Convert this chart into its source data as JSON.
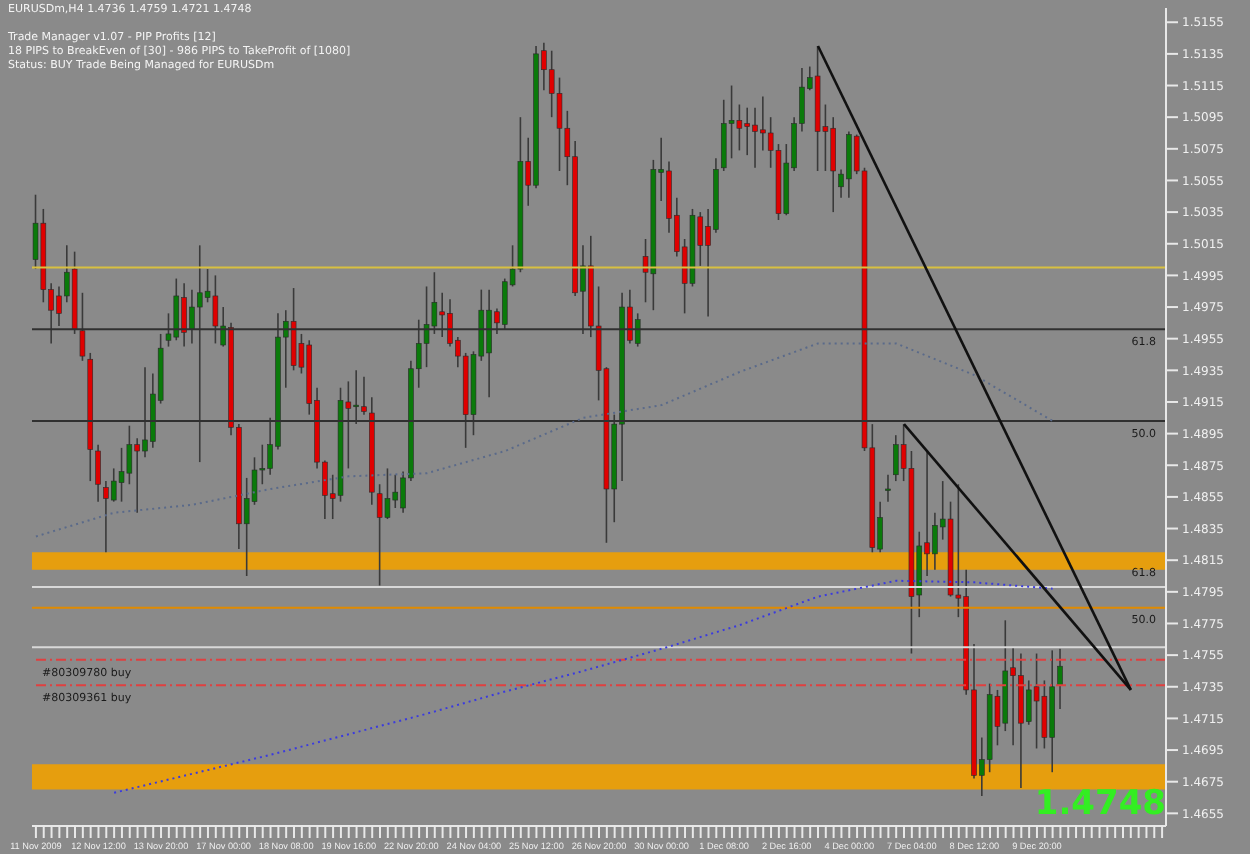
{
  "chart_data": {
    "type": "candlestick",
    "annotations": [
      "EURUSDm,H4  1.4736 1.4759 1.4721 1.4748",
      "Trade Manager v1.07 - PIP Profits [12]",
      "18 PIPS to BreakEven of [30] - 986 PIPS to TakeProfit of [1080]",
      "Status: BUY Trade Being Managed for EURUSDm",
      "1.4748",
      {
        "text": "61.8",
        "y": 1.4961
      },
      {
        "text": "50.0",
        "y": 1.4903
      },
      {
        "text": "61.8",
        "y": 1.4815
      },
      {
        "text": "50.0",
        "y": 1.4785
      }
    ],
    "categories": [
      "11 Nov 2009",
      null,
      null,
      null,
      null,
      null,
      null,
      null,
      "12 Nov 12:00",
      null,
      null,
      null,
      null,
      null,
      null,
      null,
      "13 Nov 20:00",
      null,
      null,
      null,
      null,
      null,
      null,
      null,
      "17 Nov 00:00",
      null,
      null,
      null,
      null,
      null,
      null,
      null,
      "18 Nov 08:00",
      null,
      null,
      null,
      null,
      null,
      null,
      null,
      "19 Nov 16:00",
      null,
      null,
      null,
      null,
      null,
      null,
      null,
      "22 Nov 20:00",
      null,
      null,
      null,
      null,
      null,
      null,
      null,
      "24 Nov 04:00",
      null,
      null,
      null,
      null,
      null,
      null,
      null,
      "25 Nov 12:00",
      null,
      null,
      null,
      null,
      null,
      null,
      null,
      "26 Nov 20:00",
      null,
      null,
      null,
      null,
      null,
      null,
      null,
      "30 Nov 00:00",
      null,
      null,
      null,
      null,
      null,
      null,
      null,
      "1 Dec 08:00",
      null,
      null,
      null,
      null,
      null,
      null,
      null,
      "2 Dec 16:00",
      null,
      null,
      null,
      null,
      null,
      null,
      null,
      "4 Dec 00:00",
      null,
      null,
      null,
      null,
      null,
      null,
      null,
      "7 Dec 04:00",
      null,
      null,
      null,
      null,
      null,
      null,
      null,
      "8 Dec 12:00",
      null,
      null,
      null,
      null,
      null,
      null,
      null,
      "9 Dec 20:00",
      null,
      null,
      null,
      null,
      null,
      null,
      null,
      null,
      null,
      null,
      null,
      null,
      null,
      null,
      null,
      null
    ],
    "ohlc": [
      [
        1.5005,
        1.5046,
        1.4999,
        1.5028
      ],
      [
        1.5028,
        1.5037,
        1.4978,
        1.4986
      ],
      [
        1.4986,
        1.499,
        1.4952,
        1.4973
      ],
      [
        1.4982,
        1.4988,
        1.4963,
        1.4971
      ],
      [
        1.4982,
        1.5014,
        1.4978,
        1.4997
      ],
      [
        1.4999,
        1.501,
        1.4958,
        1.4961
      ],
      [
        1.496,
        1.4984,
        1.4941,
        1.4944
      ],
      [
        1.4942,
        1.4946,
        1.4865,
        1.4885
      ],
      [
        1.4884,
        1.4888,
        1.4852,
        1.4863
      ],
      [
        1.4861,
        1.4865,
        1.482,
        1.4854
      ],
      [
        1.4853,
        1.4873,
        1.4852,
        1.4865
      ],
      [
        1.4864,
        1.4886,
        1.4852,
        1.4871
      ],
      [
        1.487,
        1.49,
        1.4863,
        1.4888
      ],
      [
        1.4888,
        1.4892,
        1.4845,
        1.4884
      ],
      [
        1.4884,
        1.4937,
        1.488,
        1.4891
      ],
      [
        1.489,
        1.4933,
        1.4886,
        1.492
      ],
      [
        1.4916,
        1.4958,
        1.4914,
        1.4949
      ],
      [
        1.4954,
        1.4971,
        1.495,
        1.4958
      ],
      [
        1.4956,
        1.4993,
        1.4954,
        1.4982
      ],
      [
        1.4981,
        1.499,
        1.495,
        1.4959
      ],
      [
        1.4961,
        1.4986,
        1.4952,
        1.4975
      ],
      [
        1.4975,
        1.5014,
        1.4877,
        1.4984
      ],
      [
        1.4981,
        1.4999,
        1.4978,
        1.4985
      ],
      [
        1.4982,
        1.4995,
        1.4952,
        1.4963
      ],
      [
        1.4951,
        1.4975,
        1.495,
        1.4963
      ],
      [
        1.4962,
        1.4965,
        1.4894,
        1.4899
      ],
      [
        1.4899,
        1.4901,
        1.4822,
        1.4838
      ],
      [
        1.4838,
        1.4867,
        1.4805,
        1.4854
      ],
      [
        1.4852,
        1.488,
        1.485,
        1.4872
      ],
      [
        1.4872,
        1.4888,
        1.4863,
        1.4873
      ],
      [
        1.4873,
        1.4905,
        1.4869,
        1.4888
      ],
      [
        1.4887,
        1.4971,
        1.4885,
        1.4956
      ],
      [
        1.4956,
        1.4973,
        1.4924,
        1.4966
      ],
      [
        1.4966,
        1.4987,
        1.4935,
        1.4938
      ],
      [
        1.4952,
        1.4958,
        1.4933,
        1.4937
      ],
      [
        1.4951,
        1.4954,
        1.4907,
        1.4914
      ],
      [
        1.4916,
        1.4924,
        1.4873,
        1.4877
      ],
      [
        1.4877,
        1.4878,
        1.4841,
        1.4856
      ],
      [
        1.4857,
        1.4869,
        1.4841,
        1.4854
      ],
      [
        1.4856,
        1.4924,
        1.4852,
        1.4916
      ],
      [
        1.4915,
        1.4928,
        1.4873,
        1.4911
      ],
      [
        1.4912,
        1.4935,
        1.4901,
        1.4913
      ],
      [
        1.4912,
        1.4931,
        1.4907,
        1.4909
      ],
      [
        1.4908,
        1.4918,
        1.485,
        1.4858
      ],
      [
        1.4857,
        1.4863,
        1.4799,
        1.4842
      ],
      [
        1.4842,
        1.4873,
        1.4841,
        1.4854
      ],
      [
        1.4853,
        1.4869,
        1.4848,
        1.4858
      ],
      [
        1.4848,
        1.4871,
        1.4845,
        1.4867
      ],
      [
        1.4867,
        1.4941,
        1.4865,
        1.4936
      ],
      [
        1.4936,
        1.4967,
        1.4924,
        1.4952
      ],
      [
        1.4952,
        1.4988,
        1.4937,
        1.4964
      ],
      [
        1.4963,
        1.4997,
        1.4958,
        1.4978
      ],
      [
        1.4972,
        1.4984,
        1.4956,
        1.497
      ],
      [
        1.4971,
        1.498,
        1.495,
        1.4952
      ],
      [
        1.4954,
        1.4956,
        1.4937,
        1.4944
      ],
      [
        1.4944,
        1.4946,
        1.4886,
        1.4907
      ],
      [
        1.4907,
        1.4947,
        1.4894,
        1.4945
      ],
      [
        1.4944,
        1.4986,
        1.4941,
        1.4973
      ],
      [
        1.4946,
        1.4986,
        1.4918,
        1.4973
      ],
      [
        1.4972,
        1.4974,
        1.4958,
        1.4965
      ],
      [
        1.4964,
        1.4993,
        1.4961,
        1.4991
      ],
      [
        1.4989,
        1.5014,
        1.4988,
        1.4999
      ],
      [
        1.4999,
        1.5095,
        1.4997,
        1.5067
      ],
      [
        1.5067,
        1.5082,
        1.5039,
        1.5052
      ],
      [
        1.5052,
        1.514,
        1.505,
        1.5135
      ],
      [
        1.5137,
        1.5142,
        1.5112,
        1.5125
      ],
      [
        1.5125,
        1.5137,
        1.5095,
        1.511
      ],
      [
        1.511,
        1.512,
        1.5061,
        1.5088
      ],
      [
        1.5088,
        1.5099,
        1.5052,
        1.507
      ],
      [
        1.507,
        1.508,
        1.4982,
        1.4984
      ],
      [
        1.4985,
        1.5014,
        1.4958,
        1.5001
      ],
      [
        1.5001,
        1.502,
        1.4956,
        1.4963
      ],
      [
        1.4963,
        1.4988,
        1.4916,
        1.4935
      ],
      [
        1.4936,
        1.4937,
        1.4826,
        1.486
      ],
      [
        1.486,
        1.4907,
        1.4839,
        1.4901
      ],
      [
        1.4901,
        1.4984,
        1.4865,
        1.4975
      ],
      [
        1.4975,
        1.4986,
        1.4952,
        1.4954
      ],
      [
        1.4952,
        1.4971,
        1.495,
        1.4967
      ],
      [
        1.5007,
        1.5018,
        1.4978,
        1.4997
      ],
      [
        1.4996,
        1.5068,
        1.4973,
        1.5062
      ],
      [
        1.506,
        1.5082,
        1.5042,
        1.5062
      ],
      [
        1.5061,
        1.5067,
        1.5022,
        1.5031
      ],
      [
        1.5033,
        1.5044,
        1.5007,
        1.501
      ],
      [
        1.5013,
        1.5018,
        1.4971,
        1.499
      ],
      [
        1.499,
        1.5037,
        1.4988,
        1.5033
      ],
      [
        1.5032,
        1.5035,
        1.5001,
        1.5014
      ],
      [
        1.5026,
        1.5037,
        1.4969,
        1.5014
      ],
      [
        1.5024,
        1.5069,
        1.5022,
        1.5062
      ],
      [
        1.5063,
        1.5106,
        1.5061,
        1.5091
      ],
      [
        1.5091,
        1.5115,
        1.5069,
        1.5093
      ],
      [
        1.5093,
        1.5103,
        1.5074,
        1.5088
      ],
      [
        1.5091,
        1.5101,
        1.5071,
        1.5089
      ],
      [
        1.509,
        1.5101,
        1.5063,
        1.5086
      ],
      [
        1.5087,
        1.5108,
        1.5074,
        1.5085
      ],
      [
        1.5085,
        1.5095,
        1.5063,
        1.5074
      ],
      [
        1.5074,
        1.5078,
        1.503,
        1.5034
      ],
      [
        1.5034,
        1.5078,
        1.5033,
        1.5066
      ],
      [
        1.5063,
        1.5095,
        1.5061,
        1.5091
      ],
      [
        1.5091,
        1.5126,
        1.5086,
        1.5114
      ],
      [
        1.5113,
        1.5127,
        1.5112,
        1.512
      ],
      [
        1.5121,
        1.514,
        1.5061,
        1.5086
      ],
      [
        1.5089,
        1.5103,
        1.5061,
        1.5086
      ],
      [
        1.5088,
        1.5095,
        1.5035,
        1.5061
      ],
      [
        1.5051,
        1.5062,
        1.5044,
        1.5059
      ],
      [
        1.5056,
        1.5086,
        1.5044,
        1.5084
      ],
      [
        1.5083,
        1.5084,
        1.5059,
        1.5061
      ],
      [
        1.5061,
        1.5063,
        1.4884,
        1.4886
      ],
      [
        1.4886,
        1.4901,
        1.482,
        1.4823
      ],
      [
        1.4822,
        1.4852,
        1.482,
        1.4842
      ],
      [
        1.486,
        1.4869,
        1.4852,
        1.486
      ],
      [
        1.4869,
        1.4894,
        1.4865,
        1.4888
      ],
      [
        1.4888,
        1.4901,
        1.4865,
        1.4873
      ],
      [
        1.4873,
        1.4884,
        1.4756,
        1.4792
      ],
      [
        1.4793,
        1.4833,
        1.4779,
        1.4824
      ],
      [
        1.4826,
        1.4884,
        1.4805,
        1.4819
      ],
      [
        1.4819,
        1.4845,
        1.4809,
        1.4837
      ],
      [
        1.4836,
        1.4865,
        1.4828,
        1.4841
      ],
      [
        1.4841,
        1.4852,
        1.4792,
        1.4793
      ],
      [
        1.4793,
        1.4863,
        1.4779,
        1.4791
      ],
      [
        1.4792,
        1.4809,
        1.473,
        1.4733
      ],
      [
        1.4733,
        1.4762,
        1.4677,
        1.4679
      ],
      [
        1.4679,
        1.4703,
        1.4666,
        1.4689
      ],
      [
        1.4689,
        1.4737,
        1.4681,
        1.473
      ],
      [
        1.4729,
        1.4733,
        1.4698,
        1.471
      ],
      [
        1.4712,
        1.4777,
        1.4707,
        1.4745
      ],
      [
        1.4747,
        1.476,
        1.4698,
        1.4742
      ],
      [
        1.4742,
        1.4756,
        1.4671,
        1.4712
      ],
      [
        1.4713,
        1.4739,
        1.4711,
        1.4733
      ],
      [
        1.4735,
        1.4756,
        1.4696,
        1.4726
      ],
      [
        1.4729,
        1.4739,
        1.4696,
        1.4703
      ],
      [
        1.4703,
        1.4758,
        1.4681,
        1.4735
      ],
      [
        1.4736,
        1.4759,
        1.4721,
        1.4748
      ],
      null,
      null,
      null,
      null,
      null,
      null,
      null,
      null,
      null,
      null,
      null,
      null,
      null
    ],
    "series": [
      {
        "type": "line",
        "color": "#5a6a8a",
        "line_style": "dotted",
        "values": [
          1.483,
          null,
          null,
          null,
          null,
          null,
          null,
          null,
          null,
          null,
          1.4845,
          null,
          null,
          null,
          null,
          null,
          null,
          null,
          null,
          null,
          1.485,
          null,
          null,
          null,
          null,
          null,
          null,
          null,
          null,
          null,
          1.486,
          null,
          null,
          null,
          null,
          null,
          null,
          null,
          null,
          null,
          1.4868,
          null,
          null,
          null,
          null,
          null,
          null,
          null,
          null,
          null,
          1.487,
          null,
          null,
          null,
          null,
          null,
          null,
          null,
          null,
          null,
          1.4884,
          null,
          null,
          null,
          null,
          null,
          null,
          null,
          null,
          null,
          1.4905,
          null,
          null,
          null,
          null,
          null,
          null,
          null,
          null,
          null,
          1.4913,
          null,
          null,
          null,
          null,
          null,
          null,
          null,
          null,
          null,
          1.4934,
          null,
          null,
          null,
          null,
          null,
          null,
          null,
          null,
          null,
          1.4952,
          null,
          null,
          null,
          null,
          null,
          null,
          null,
          null,
          null,
          1.4952,
          null,
          null,
          null,
          null,
          null,
          null,
          null,
          null,
          null,
          1.4932,
          null,
          null,
          null,
          null,
          null,
          null,
          null,
          null,
          null,
          1.4903,
          null,
          null,
          null,
          null,
          null,
          null,
          null,
          null,
          null,
          null,
          null,
          null,
          null,
          null
        ]
      },
      {
        "type": "line",
        "color": "#3a3ae0",
        "line_style": "dotted",
        "values": [
          null,
          null,
          null,
          null,
          null,
          null,
          null,
          null,
          null,
          null,
          1.4668,
          null,
          null,
          null,
          null,
          null,
          null,
          null,
          null,
          null,
          1.468,
          null,
          null,
          null,
          null,
          null,
          null,
          null,
          null,
          null,
          1.4692,
          null,
          null,
          null,
          null,
          null,
          null,
          null,
          null,
          null,
          1.4705,
          null,
          null,
          null,
          null,
          null,
          null,
          null,
          null,
          null,
          1.4718,
          null,
          null,
          null,
          null,
          null,
          null,
          null,
          null,
          null,
          1.4732,
          null,
          null,
          null,
          null,
          null,
          null,
          null,
          null,
          null,
          1.4745,
          null,
          null,
          null,
          null,
          null,
          null,
          null,
          null,
          null,
          1.4759,
          null,
          null,
          null,
          null,
          null,
          null,
          null,
          null,
          null,
          1.4774,
          null,
          null,
          null,
          null,
          null,
          null,
          null,
          null,
          null,
          1.4792,
          null,
          null,
          null,
          null,
          null,
          null,
          null,
          null,
          null,
          1.4802,
          null,
          null,
          null,
          null,
          null,
          null,
          null,
          null,
          null,
          1.4801,
          null,
          null,
          null,
          null,
          null,
          null,
          null,
          null,
          null,
          1.4797,
          null,
          null,
          null,
          null,
          null,
          null,
          null,
          null,
          null,
          null,
          null,
          null,
          null,
          null
        ]
      },
      {
        "type": "line",
        "color": "#111111",
        "line_style": "solid",
        "values": [
          null,
          null,
          null,
          null,
          null,
          null,
          null,
          null,
          null,
          null,
          null,
          null,
          null,
          null,
          null,
          null,
          null,
          null,
          null,
          null,
          null,
          null,
          null,
          null,
          null,
          null,
          null,
          null,
          null,
          null,
          null,
          null,
          null,
          null,
          null,
          null,
          null,
          null,
          null,
          null,
          null,
          null,
          null,
          null,
          null,
          null,
          null,
          null,
          null,
          null,
          null,
          null,
          null,
          null,
          null,
          null,
          null,
          null,
          null,
          null,
          null,
          null,
          null,
          null,
          null,
          null,
          null,
          null,
          null,
          null,
          null,
          null,
          null,
          null,
          null,
          null,
          null,
          null,
          null,
          null,
          null,
          null,
          null,
          null,
          null,
          null,
          null,
          null,
          null,
          null,
          null,
          null,
          null,
          null,
          null,
          null,
          null,
          null,
          null,
          null,
          1.514,
          null,
          null,
          null,
          null,
          null,
          null,
          null,
          null,
          null,
          null,
          null,
          null,
          null,
          null,
          null,
          null,
          null,
          null,
          null,
          null,
          null,
          null,
          null,
          null,
          null,
          null,
          null,
          null,
          null,
          null,
          null,
          null,
          null,
          null,
          null,
          null,
          null,
          null,
          null,
          1.4733,
          null,
          null,
          null,
          null
        ]
      },
      {
        "type": "line",
        "color": "#111111",
        "line_style": "solid",
        "values": [
          null,
          null,
          null,
          null,
          null,
          null,
          null,
          null,
          null,
          null,
          null,
          null,
          null,
          null,
          null,
          null,
          null,
          null,
          null,
          null,
          null,
          null,
          null,
          null,
          null,
          null,
          null,
          null,
          null,
          null,
          null,
          null,
          null,
          null,
          null,
          null,
          null,
          null,
          null,
          null,
          null,
          null,
          null,
          null,
          null,
          null,
          null,
          null,
          null,
          null,
          null,
          null,
          null,
          null,
          null,
          null,
          null,
          null,
          null,
          null,
          null,
          null,
          null,
          null,
          null,
          null,
          null,
          null,
          null,
          null,
          null,
          null,
          null,
          null,
          null,
          null,
          null,
          null,
          null,
          null,
          null,
          null,
          null,
          null,
          null,
          null,
          null,
          null,
          null,
          null,
          null,
          null,
          null,
          null,
          null,
          null,
          null,
          null,
          null,
          null,
          null,
          null,
          null,
          null,
          null,
          null,
          null,
          null,
          null,
          null,
          null,
          1.4901,
          null,
          null,
          null,
          null,
          null,
          null,
          null,
          null,
          null,
          null,
          null,
          null,
          null,
          null,
          null,
          null,
          null,
          null,
          null,
          null,
          null,
          null,
          null,
          null,
          null,
          null,
          null,
          null,
          1.4733,
          null,
          null,
          null,
          null
        ]
      }
    ],
    "ylim": [
      1.4647,
      1.5164
    ],
    "yticks": [
      1.4655,
      1.4675,
      1.4695,
      1.4715,
      1.4735,
      1.4755,
      1.4775,
      1.4795,
      1.4815,
      1.4835,
      1.4855,
      1.4875,
      1.4895,
      1.4915,
      1.4935,
      1.4955,
      1.4975,
      1.4995,
      1.5015,
      1.5035,
      1.5055,
      1.5075,
      1.5095,
      1.5115,
      1.5135,
      1.5155
    ],
    "ref_lines": [
      {
        "axis": "y",
        "value": 1.5,
        "color": "#d8c040"
      },
      {
        "axis": "y",
        "value": 1.4961,
        "color": "#303030"
      },
      {
        "axis": "y",
        "value": 1.4903,
        "color": "#303030"
      },
      {
        "axis": "y",
        "value": 1.4798,
        "color": "#d8d8d8"
      },
      {
        "axis": "y",
        "value": 1.4785,
        "color": "#e08a00"
      },
      {
        "axis": "y",
        "value": 1.476,
        "color": "#d8d8d8"
      },
      {
        "axis": "y",
        "value": 1.4752,
        "label": "#80309780 buy",
        "color": "#e04040",
        "line_style": "dashed"
      },
      {
        "axis": "y",
        "value": 1.4736,
        "label": "#80309361 buy",
        "color": "#e04040",
        "line_style": "dashed"
      }
    ],
    "bands": [
      {
        "axis": "y",
        "from": 1.4809,
        "to": 1.482,
        "color": "#f0a000"
      },
      {
        "axis": "y",
        "from": 1.467,
        "to": 1.4686,
        "color": "#f0a000"
      }
    ]
  }
}
